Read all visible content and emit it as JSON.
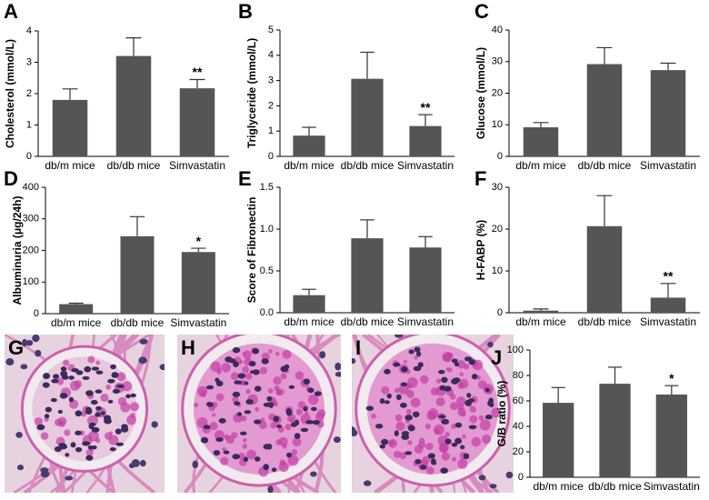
{
  "chart_data": [
    {
      "type": "bar",
      "panel_label": "A",
      "y_label": "Cholesterol (mmol/L)",
      "categories": [
        "db/m mice",
        "db/db mice",
        "Simvastatin"
      ],
      "values": [
        1.8,
        3.2,
        2.17
      ],
      "errors": [
        0.35,
        0.58,
        0.28
      ],
      "significance": [
        null,
        null,
        "**"
      ],
      "color": "#555555",
      "ylim": [
        0,
        4
      ],
      "yticks": [
        0,
        1,
        2,
        3,
        4
      ]
    },
    {
      "type": "bar",
      "panel_label": "B",
      "y_label": "Triglyceride (mmol/L)",
      "categories": [
        "db/m mice",
        "db/db mice",
        "Simvastatin"
      ],
      "values": [
        0.82,
        3.07,
        1.2
      ],
      "errors": [
        0.33,
        1.05,
        0.45
      ],
      "significance": [
        null,
        null,
        "**"
      ],
      "color": "#555555",
      "ylim": [
        0,
        5
      ],
      "yticks": [
        0,
        1,
        2,
        3,
        4,
        5
      ]
    },
    {
      "type": "bar",
      "panel_label": "C",
      "y_label": "Glucose (mmol/L)",
      "categories": [
        "db/m mice",
        "db/db mice",
        "Simvastatin"
      ],
      "values": [
        9.2,
        29.2,
        27.3
      ],
      "errors": [
        1.5,
        5.2,
        2.2
      ],
      "significance": [
        null,
        null,
        null
      ],
      "color": "#555555",
      "ylim": [
        0,
        40
      ],
      "yticks": [
        0,
        10,
        20,
        30,
        40
      ]
    },
    {
      "type": "bar",
      "panel_label": "D",
      "y_label": "Albuminuria (μg/24h)",
      "categories": [
        "db/m mice",
        "db/db mice",
        "Simvastatin"
      ],
      "values": [
        30,
        245,
        195
      ],
      "errors": [
        3,
        62,
        12
      ],
      "significance": [
        null,
        null,
        "*"
      ],
      "color": "#555555",
      "ylim": [
        0,
        400
      ],
      "yticks": [
        0,
        100,
        200,
        300,
        400
      ]
    },
    {
      "type": "bar",
      "panel_label": "E",
      "y_label": "Score of Fibronectin",
      "categories": [
        "db/m mice",
        "db/db mice",
        "Simvastatin"
      ],
      "values": [
        0.21,
        0.89,
        0.78
      ],
      "errors": [
        0.07,
        0.22,
        0.13
      ],
      "significance": [
        null,
        null,
        null
      ],
      "color": "#555555",
      "ylim": [
        0,
        1.5
      ],
      "yticks": [
        {
          "value": 0,
          "label": "0.0"
        },
        0.5,
        {
          "value": 1,
          "label": "1.0"
        },
        1.5
      ]
    },
    {
      "type": "bar",
      "panel_label": "F",
      "y_label": "H-FABP (%)",
      "categories": [
        "db/m mice",
        "db/db mice",
        "Simvastatin"
      ],
      "values": [
        0.5,
        20.7,
        3.6
      ],
      "errors": [
        0.4,
        7.3,
        3.4
      ],
      "significance": [
        null,
        null,
        "**"
      ],
      "color": "#555555",
      "ylim": [
        0,
        30
      ],
      "yticks": [
        0,
        10,
        20,
        30
      ]
    },
    {
      "type": "bar",
      "panel_label": "J",
      "y_label": "G/B ratio (%)",
      "categories": [
        "db/m mice",
        "db/db mice",
        "Simvastatin"
      ],
      "values": [
        58.5,
        73.5,
        65
      ],
      "errors": [
        12,
        13,
        7
      ],
      "significance": [
        null,
        null,
        "*"
      ],
      "color": "#555555",
      "ylim": [
        0,
        100
      ],
      "yticks": [
        0,
        20,
        40,
        60,
        80,
        100
      ]
    }
  ],
  "images": [
    {
      "label": "G"
    },
    {
      "label": "H"
    },
    {
      "label": "I"
    }
  ]
}
